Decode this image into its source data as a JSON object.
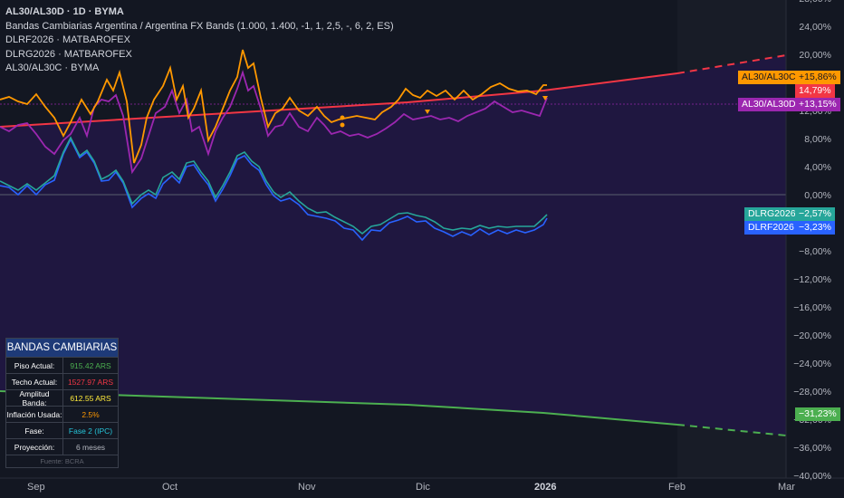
{
  "legend": {
    "main": "AL30/AL30D · 1D · BYMA",
    "line1": "Bandas Cambiarias Argentina / Argentina FX Bands (1.000, 1.400, -1, 1, 2,5, -, 6, 2, ES)",
    "line2": "DLRF2026 · MATBAROFEX",
    "line3": "DLRG2026 · MATBAROFEX",
    "line4": "AL30/AL30C · BYMA"
  },
  "y_axis": {
    "ticks": [
      "28,00%",
      "24,00%",
      "20,00%",
      "16,00%",
      "12,00%",
      "8,00%",
      "4,00%",
      "0,00%",
      "−4,00%",
      "−8,00%",
      "−12,00%",
      "−16,00%",
      "−20,00%",
      "−24,00%",
      "−28,00%",
      "−32,00%",
      "−36,00%",
      "−40,00%"
    ]
  },
  "x_axis": {
    "labels": [
      "Sep",
      "Oct",
      "Nov",
      "Dic",
      "2026",
      "Feb",
      "Mar"
    ]
  },
  "tags": {
    "al30c": {
      "name": "AL30/AL30C",
      "value": "+15,86%"
    },
    "upper_band": {
      "value": "14,79%"
    },
    "al30d": {
      "name": "AL30/AL30D",
      "value": "+13,15%"
    },
    "dlrg": {
      "name": "DLRG2026",
      "value": "−2,57%"
    },
    "dlrf": {
      "name": "DLRF2026",
      "value": "−3,23%"
    },
    "lower_band": {
      "value": "−31,23%"
    }
  },
  "info_panel": {
    "title": "BANDAS CAMBIARIAS",
    "rows": [
      {
        "k": "Piso Actual:",
        "v": "915.42 ARS"
      },
      {
        "k": "Techo Actual:",
        "v": "1527.97 ARS"
      },
      {
        "k": "Amplitud Banda:",
        "v": "612.55 ARS"
      },
      {
        "k": "Inflación Usada:",
        "v": "2.5%"
      },
      {
        "k": "Fase:",
        "v": "Fase 2 (IPC)"
      },
      {
        "k": "Proyección:",
        "v": "6 meses"
      }
    ],
    "footer": "Fuente: BCRA"
  },
  "colors": {
    "background": "#131722",
    "band_fill": "#1f1740",
    "upper_band": "#f23645",
    "lower_band": "#4caf50",
    "al30c": "#ff9800",
    "al30d": "#9c27b0",
    "dlrg": "#26a69a",
    "dlrf": "#2962ff"
  },
  "chart_data": {
    "type": "line",
    "y_unit": "%",
    "y_range": [
      -40,
      28
    ],
    "x_range_labels": [
      "Sep",
      "Mar"
    ],
    "series": [
      {
        "name": "AL30/AL30C",
        "last": 15.86,
        "x": [
          "Sep",
          "Oct",
          "Nov",
          "Dic",
          "2026"
        ],
        "values": [
          13,
          15,
          12,
          14,
          15.86
        ]
      },
      {
        "name": "AL30/AL30D",
        "last": 13.15,
        "x": [
          "Sep",
          "Oct",
          "Nov",
          "Dic",
          "2026"
        ],
        "values": [
          9,
          11,
          9,
          10.5,
          13.15
        ]
      },
      {
        "name": "DLRG2026",
        "last": -2.57,
        "x": [
          "Sep",
          "Oct",
          "Nov",
          "Dic",
          "2026"
        ],
        "values": [
          1,
          3,
          -1,
          -4.5,
          -2.57
        ]
      },
      {
        "name": "DLRF2026",
        "last": -3.23,
        "x": [
          "Sep",
          "Oct",
          "Nov",
          "Dic",
          "2026"
        ],
        "values": [
          1,
          2.5,
          -1.5,
          -5,
          -3.23
        ]
      },
      {
        "x": [
          "Sep",
          "Oct",
          "Nov",
          "Dic",
          "2026",
          "Feb",
          "Mar"
        ],
        "values": [
          9.5,
          10.5,
          11.5,
          12.5,
          14.79,
          17,
          20
        ]
      },
      {
        "x": [
          "Sep",
          "Oct",
          "Nov",
          "Dic",
          "2026",
          "Feb",
          "Mar"
        ],
        "values": [
          -27.5,
          -28,
          -28.6,
          -29.3,
          -31.23,
          -33.5,
          -35
        ]
      }
    ]
  }
}
